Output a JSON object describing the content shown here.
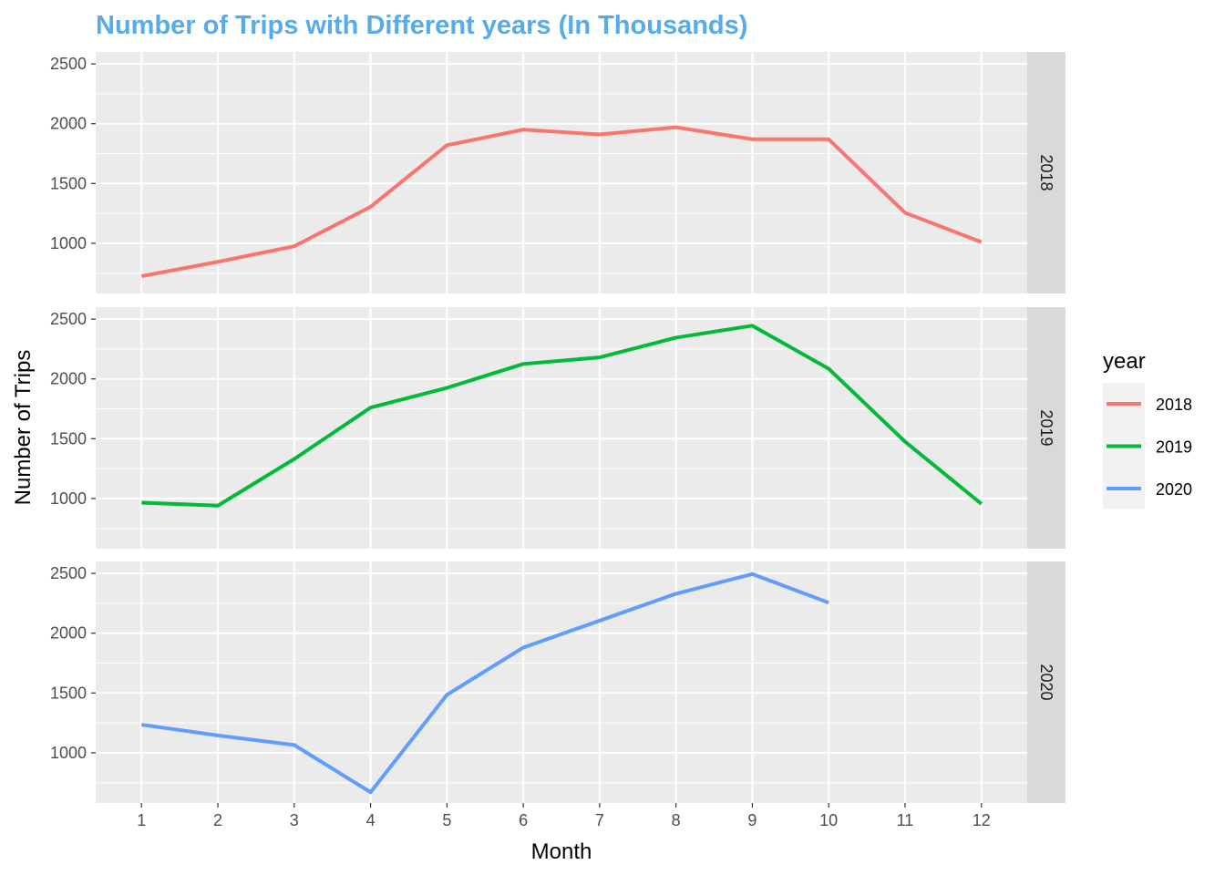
{
  "chart_data": {
    "type": "line",
    "title": "Number of Trips with Different years (In Thousands)",
    "xlabel": "Month",
    "ylabel": "Number of Trips",
    "x": [
      1,
      2,
      3,
      4,
      5,
      6,
      7,
      8,
      9,
      10,
      11,
      12
    ],
    "x_ticks": [
      "1",
      "2",
      "3",
      "4",
      "5",
      "6",
      "7",
      "8",
      "9",
      "10",
      "11",
      "12"
    ],
    "y_ticks": [
      1000,
      1500,
      2000,
      2500
    ],
    "xlim": [
      0.4,
      12.6
    ],
    "ylim": [
      580,
      2600
    ],
    "facet_by": "year",
    "grid": true,
    "legend": {
      "title": "year",
      "position": "right"
    },
    "series": [
      {
        "name": "2018",
        "color": "#F8766D",
        "values": [
          725,
          845,
          975,
          1305,
          1820,
          1950,
          1910,
          1970,
          1870,
          1870,
          1255,
          1010
        ]
      },
      {
        "name": "2019",
        "color": "#00BA38",
        "values": [
          965,
          940,
          1330,
          1760,
          1925,
          2125,
          2180,
          2345,
          2445,
          2085,
          1475,
          955
        ]
      },
      {
        "name": "2020",
        "color": "#619CFF",
        "values": [
          1235,
          1145,
          1065,
          670,
          1485,
          1880,
          2105,
          2330,
          2495,
          2255,
          null,
          null
        ]
      }
    ]
  }
}
